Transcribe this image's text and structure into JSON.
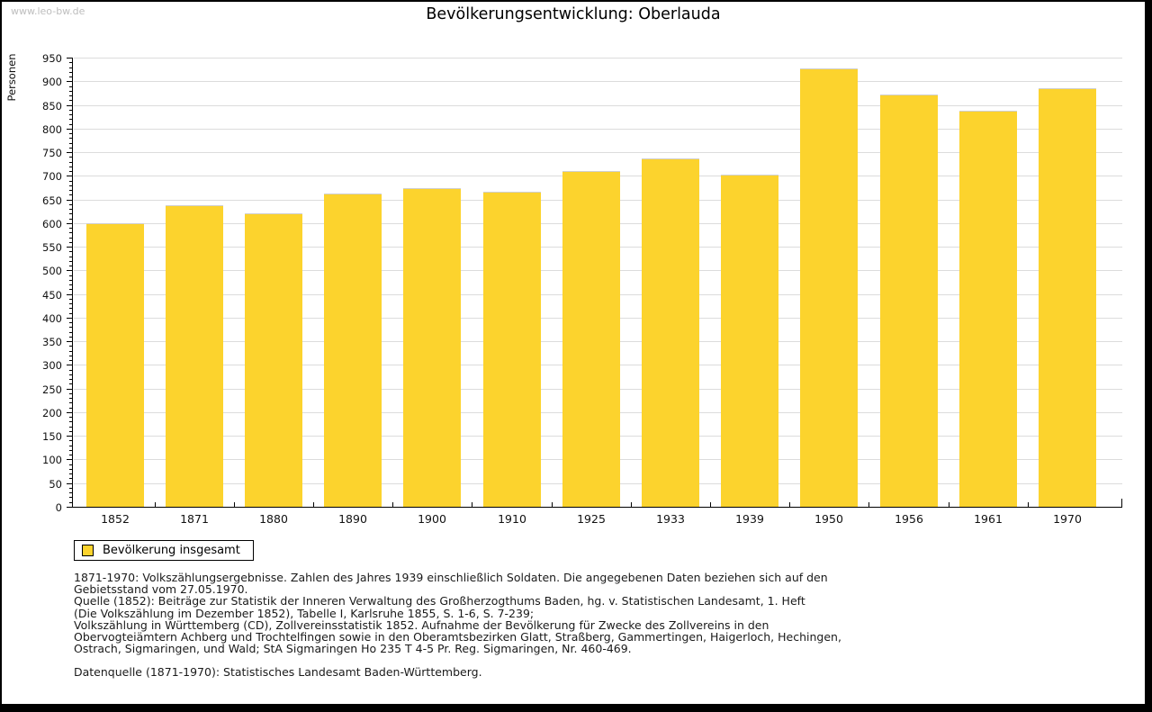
{
  "watermark": "www.leo-bw.de",
  "title": "Bevölkerungsentwicklung: Oberlauda",
  "chart_data": {
    "type": "bar",
    "title": "Bevölkerungsentwicklung: Oberlauda",
    "xlabel": "",
    "ylabel": "Personen",
    "categories": [
      "1852",
      "1871",
      "1880",
      "1890",
      "1900",
      "1910",
      "1925",
      "1933",
      "1939",
      "1950",
      "1956",
      "1961",
      "1970"
    ],
    "values": [
      600,
      638,
      620,
      662,
      673,
      667,
      711,
      737,
      702,
      927,
      872,
      838,
      885
    ],
    "series_name": "Bevölkerung insgesamt",
    "ylim": [
      0,
      950
    ],
    "ytick_step": 50,
    "minor_tick_step": 10,
    "grid": true,
    "legend_position": "bottom-left",
    "bar_color": "#fcd32d",
    "gridline_color": "#dcdcdc",
    "axis_color": "#000000"
  },
  "legend": {
    "label": "Bevölkerung insgesamt",
    "swatch_color": "#fcd32d"
  },
  "footnotes": {
    "lines": [
      "1871-1970: Volkszählungsergebnisse. Zahlen des Jahres 1939 einschließlich Soldaten. Die angegebenen Daten beziehen sich auf den",
      "Gebietsstand vom 27.05.1970.",
      "Quelle (1852): Beiträge zur Statistik der Inneren Verwaltung des Großherzogthums Baden, hg. v. Statistischen Landesamt, 1. Heft",
      "(Die Volkszählung im Dezember 1852), Tabelle I, Karlsruhe 1855, S. 1-6, S. 7-239;",
      "Volkszählung in Württemberg (CD), Zollvereinsstatistik 1852. Aufnahme der Bevölkerung für Zwecke des Zollvereins in den",
      "Obervogteiämtern Achberg und Trochtelfingen sowie in den Oberamtsbezirken Glatt, Straßberg, Gammertingen, Haigerloch, Hechingen,",
      "Ostrach, Sigmaringen, und Wald; StA Sigmaringen Ho 235 T 4-5 Pr. Reg. Sigmaringen, Nr. 460-469."
    ],
    "datasource": "Datenquelle (1871-1970): Statistisches Landesamt Baden-Württemberg."
  }
}
